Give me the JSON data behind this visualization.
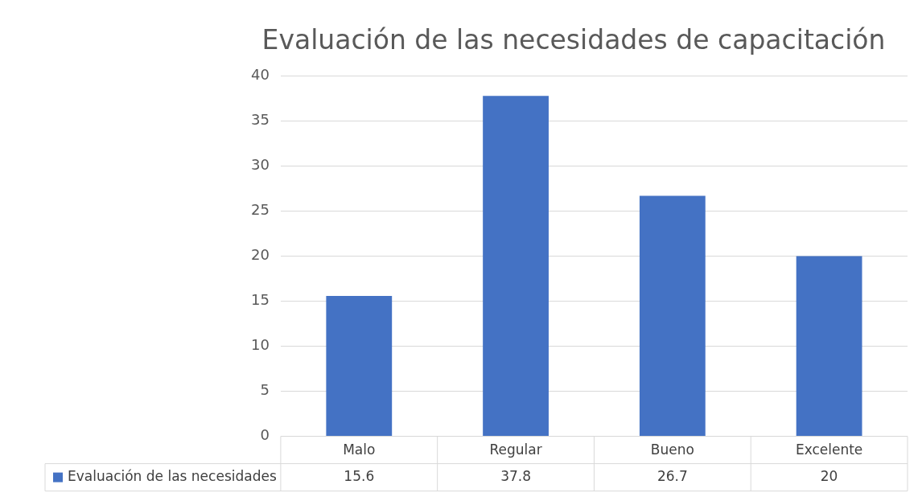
{
  "chart_data": {
    "type": "bar",
    "title": "Evaluación de las necesidades de capacitación",
    "categories": [
      "Malo",
      "Regular",
      "Bueno",
      "Excelente"
    ],
    "series": [
      {
        "name": "Evaluación de las necesidades",
        "color": "#4472c4",
        "values": [
          15.6,
          37.8,
          26.7,
          20
        ]
      }
    ],
    "ylim": [
      0,
      40
    ],
    "yticks": [
      0,
      5,
      10,
      15,
      20,
      25,
      30,
      35,
      40
    ],
    "grid": "y",
    "data_labels": true,
    "legend": "bottom"
  }
}
